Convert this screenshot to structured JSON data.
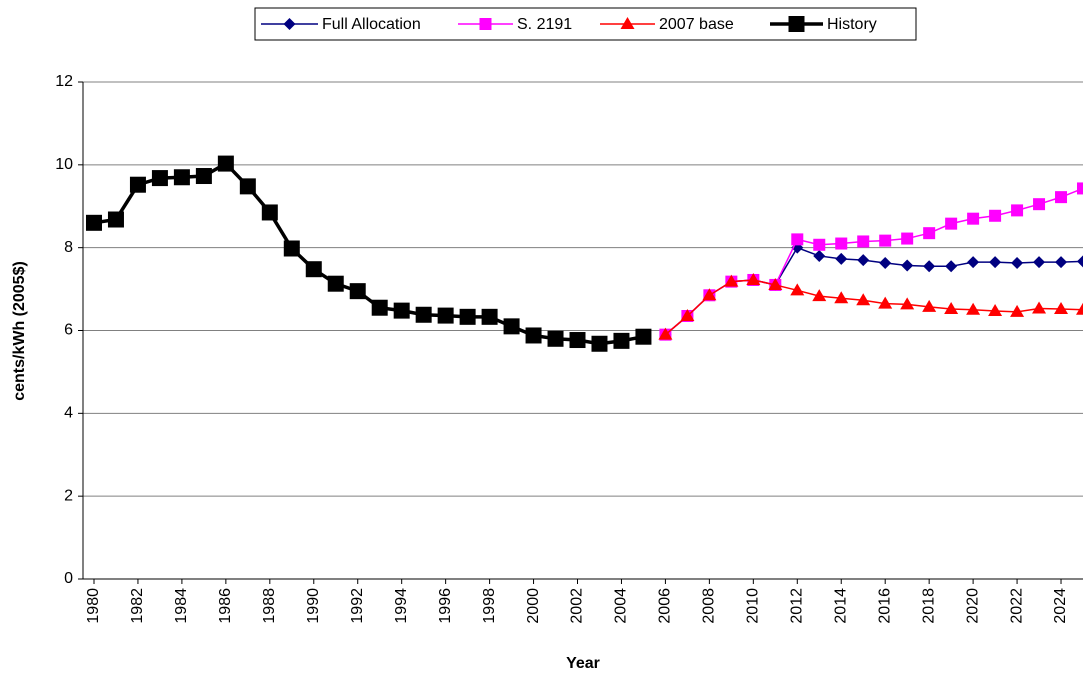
{
  "chart_data": {
    "type": "line",
    "y_label": "cents/kWh (2005$)",
    "x_label": "Year",
    "x": [
      1980,
      1981,
      1982,
      1983,
      1984,
      1985,
      1986,
      1987,
      1988,
      1989,
      1990,
      1991,
      1992,
      1993,
      1994,
      1995,
      1996,
      1997,
      1998,
      1999,
      2000,
      2001,
      2002,
      2003,
      2004,
      2005,
      2006,
      2007,
      2008,
      2009,
      2010,
      2011,
      2012,
      2013,
      2014,
      2015,
      2016,
      2017,
      2018,
      2019,
      2020,
      2021,
      2022,
      2023,
      2024,
      2025
    ],
    "xlim": [
      1979.5,
      2025
    ],
    "xticks": [
      1980,
      1982,
      1984,
      1986,
      1988,
      1990,
      1992,
      1994,
      1996,
      1998,
      2000,
      2002,
      2004,
      2006,
      2008,
      2010,
      2012,
      2014,
      2016,
      2018,
      2020,
      2022,
      2024
    ],
    "ylim": [
      0,
      12
    ],
    "yticks": [
      0,
      2,
      4,
      6,
      8,
      10,
      12
    ],
    "grid": true,
    "legend": "top",
    "series": [
      {
        "name": "Full Allocation",
        "color": "#000080",
        "marker": "diamond",
        "values": [
          null,
          null,
          null,
          null,
          null,
          null,
          null,
          null,
          null,
          null,
          null,
          null,
          null,
          null,
          null,
          null,
          null,
          null,
          null,
          null,
          null,
          null,
          null,
          null,
          null,
          null,
          5.9,
          6.35,
          6.85,
          7.18,
          7.22,
          7.1,
          8.0,
          7.8,
          7.73,
          7.7,
          7.63,
          7.57,
          7.55,
          7.55,
          7.65,
          7.65,
          7.63,
          7.65,
          7.65,
          7.67
        ]
      },
      {
        "name": "S. 2191",
        "color": "#ff00ff",
        "marker": "square",
        "values": [
          null,
          null,
          null,
          null,
          null,
          null,
          null,
          null,
          null,
          null,
          null,
          null,
          null,
          null,
          null,
          null,
          null,
          null,
          null,
          null,
          null,
          null,
          null,
          null,
          null,
          null,
          5.9,
          6.35,
          6.85,
          7.18,
          7.22,
          7.1,
          8.2,
          8.07,
          8.1,
          8.15,
          8.17,
          8.22,
          8.35,
          8.58,
          8.7,
          8.77,
          8.9,
          9.05,
          9.22,
          9.43
        ]
      },
      {
        "name": "2007 base",
        "color": "#ff0000",
        "marker": "triangle",
        "values": [
          null,
          null,
          null,
          null,
          null,
          null,
          null,
          null,
          null,
          null,
          null,
          null,
          null,
          null,
          null,
          null,
          null,
          null,
          null,
          null,
          null,
          null,
          null,
          null,
          null,
          null,
          5.9,
          6.35,
          6.85,
          7.18,
          7.22,
          7.1,
          6.97,
          6.83,
          6.78,
          6.73,
          6.65,
          6.63,
          6.57,
          6.52,
          6.5,
          6.47,
          6.45,
          6.53,
          6.52,
          6.5
        ]
      },
      {
        "name": "History",
        "color": "#000000",
        "marker": "bigsquare",
        "values": [
          8.6,
          8.68,
          9.52,
          9.68,
          9.7,
          9.73,
          10.03,
          9.48,
          8.85,
          7.98,
          7.48,
          7.13,
          6.95,
          6.55,
          6.48,
          6.38,
          6.36,
          6.33,
          6.33,
          6.1,
          5.88,
          5.8,
          5.77,
          5.68,
          5.75,
          5.85,
          null,
          null,
          null,
          null,
          null,
          null,
          null,
          null,
          null,
          null,
          null,
          null,
          null,
          null,
          null,
          null,
          null,
          null,
          null,
          null
        ]
      }
    ]
  }
}
